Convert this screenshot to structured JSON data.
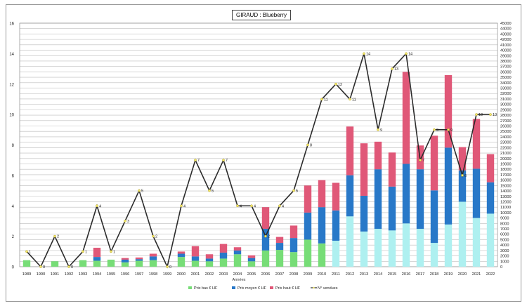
{
  "chart_data": {
    "type": "bar",
    "title": "GIRAUD : Blueberry",
    "xlabel": "Années",
    "categories": [
      "1989",
      "1990",
      "1991",
      "1992",
      "1993",
      "1994",
      "1995",
      "1996",
      "1997",
      "1998",
      "1999",
      "2000",
      "2001",
      "2002",
      "2003",
      "2004",
      "2005",
      "2006",
      "2007",
      "2008",
      "2009",
      "2010",
      "2011",
      "2012",
      "2013",
      "2014",
      "2015",
      "2016",
      "2017",
      "2018",
      "2019",
      "2020",
      "2021",
      "2022"
    ],
    "y_left": {
      "min": 0,
      "max": 16,
      "step": 2,
      "ticks": [
        "0",
        "2",
        "4",
        "6",
        "8",
        "10",
        "12",
        "14",
        "16"
      ]
    },
    "y_right": {
      "min": 0,
      "max": 45000,
      "step": 1000
    },
    "series": [
      {
        "name": "Prix bas € HF",
        "axis": "right",
        "color": "#77dd77",
        "color_alt": "#aef0f0",
        "values": [
          1200,
          0,
          1000,
          0,
          1200,
          1100,
          1300,
          800,
          1100,
          1200,
          0,
          1800,
          1100,
          1000,
          1500,
          2300,
          1000,
          3000,
          3100,
          2700,
          5000,
          4300,
          4800,
          9300,
          6500,
          7000,
          6700,
          8000,
          7000,
          4400,
          7800,
          12000,
          9000,
          9800
        ]
      },
      {
        "name": "Prix moyen € HF",
        "axis": "right",
        "color": "#2878c8",
        "values": [
          0,
          0,
          0,
          0,
          0,
          700,
          0,
          500,
          300,
          700,
          0,
          600,
          800,
          500,
          1100,
          700,
          600,
          4000,
          1300,
          2600,
          5000,
          6700,
          5600,
          7600,
          6600,
          11000,
          8100,
          11000,
          11000,
          9700,
          14200,
          5800,
          9100,
          5800
        ]
      },
      {
        "name": "Prix haut € HF",
        "axis": "right",
        "color": "#e05878",
        "values": [
          0,
          0,
          0,
          0,
          0,
          1700,
          0,
          300,
          300,
          500,
          0,
          400,
          1900,
          800,
          1600,
          600,
          500,
          4000,
          1100,
          2300,
          5000,
          5000,
          5100,
          9000,
          9700,
          5100,
          6300,
          17000,
          4400,
          10100,
          13400,
          4300,
          9200,
          5200
        ]
      },
      {
        "name": "N° vendues",
        "axis": "left",
        "type": "line",
        "color": "#2b2b2b",
        "values": [
          1,
          0,
          2,
          0,
          1,
          4,
          1,
          3,
          5,
          2,
          0,
          4,
          7,
          5,
          7,
          4,
          4,
          2,
          4,
          5,
          8,
          11,
          12,
          11,
          14,
          9,
          13,
          14,
          7,
          9,
          9,
          6,
          10,
          10
        ]
      }
    ],
    "data_labels": [
      "1",
      "0",
      "2",
      "0",
      "1",
      "4",
      "1",
      "3",
      "5",
      "2",
      "0",
      "4",
      "7",
      "5",
      "7",
      "4",
      "4",
      "2",
      "4",
      "5",
      "8",
      "11",
      "12",
      "11",
      "14",
      "9",
      "13",
      "14",
      "7",
      "9",
      "9",
      "6",
      "10",
      "10"
    ],
    "legend": {
      "position": "bottom"
    },
    "grid": true
  }
}
